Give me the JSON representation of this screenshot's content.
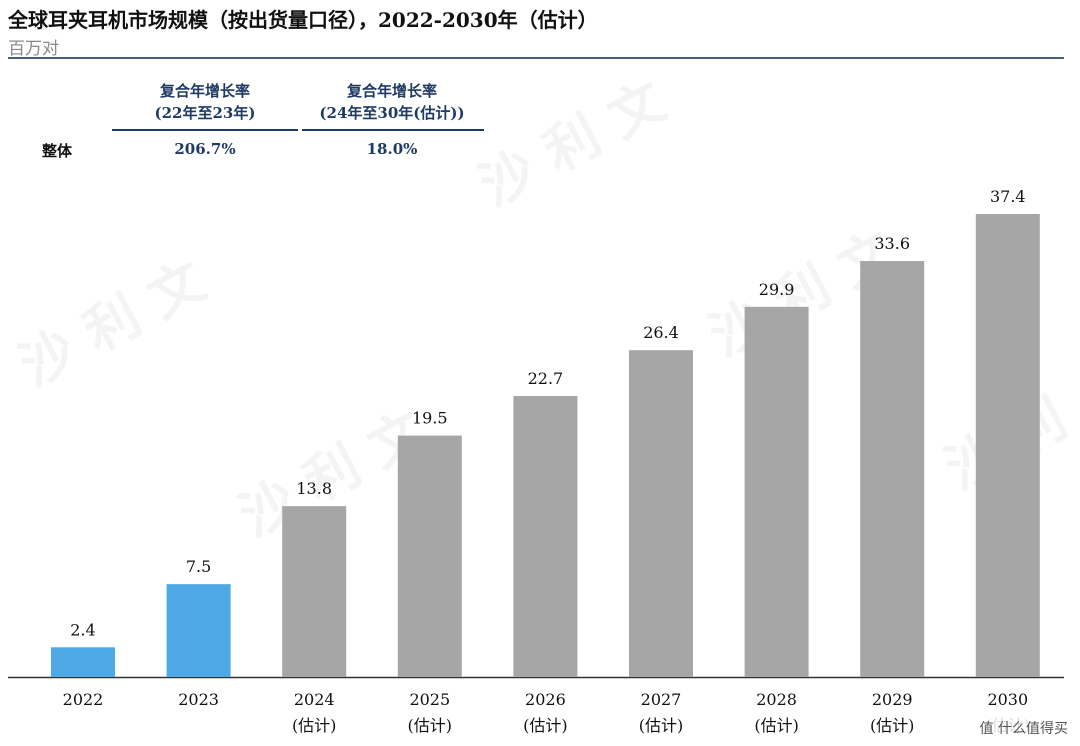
{
  "header": {
    "title": "全球耳夹耳机市场规模（按出货量口径），2022-2030年（估计）",
    "subtitle": "百万对"
  },
  "cagr_table": {
    "col1_header_line1": "复合年增长率",
    "col1_header_line2": "(22年至23年)",
    "col2_header_line1": "复合年增长率",
    "col2_header_line2": "(24年至30年(估计))",
    "row_label": "整体",
    "col1_value": "206.7%",
    "col2_value": "18.0%"
  },
  "watermarks": [
    "沙 利 文",
    "沙 利 文",
    "沙 利 文",
    "沙 利 文",
    "沙 利"
  ],
  "badge": "值 什么值得买",
  "colors": {
    "actual": "#4ea9e6",
    "estimate": "#a6a6a6",
    "header_blue": "#1f3a63",
    "axis": "#333333"
  },
  "chart_data": {
    "type": "bar",
    "categories": [
      "2022",
      "2023",
      "2024",
      "2025",
      "2026",
      "2027",
      "2028",
      "2029",
      "2030"
    ],
    "category_sublabels": [
      "",
      "",
      "(估计)",
      "(估计)",
      "(估计)",
      "(估计)",
      "(估计)",
      "(估计)",
      "(估计)"
    ],
    "values": [
      2.4,
      7.5,
      13.8,
      19.5,
      22.7,
      26.4,
      29.9,
      33.6,
      37.4
    ],
    "value_labels": [
      "2.4",
      "7.5",
      "13.8",
      "19.5",
      "22.7",
      "26.4",
      "29.9",
      "33.6",
      "37.4"
    ],
    "bar_kind": [
      "actual",
      "actual",
      "estimate",
      "estimate",
      "estimate",
      "estimate",
      "estimate",
      "estimate",
      "estimate"
    ],
    "title": "全球耳夹耳机市场规模（按出货量口径），2022-2030年（估计）",
    "ylabel": "百万对",
    "xlabel": "",
    "ylim": [
      0,
      37.4
    ],
    "grid": false,
    "legend": "none"
  }
}
